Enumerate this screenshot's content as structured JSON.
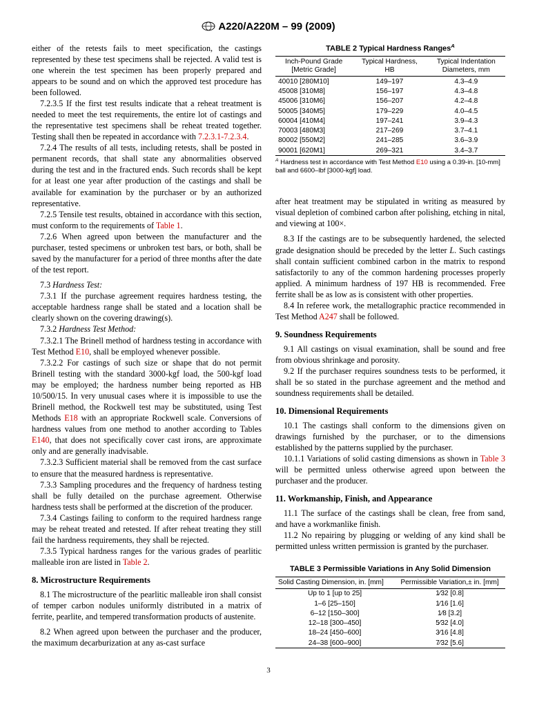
{
  "header": {
    "standard": "A220/A220M – 99 (2009)"
  },
  "col1": {
    "p1": "either of the retests fails to meet specification, the castings represented by these test specimens shall be rejected. A valid test is one wherein the test specimen has been properly prepared and appears to be sound and on which the approved test procedure has been followed.",
    "p2a": "7.2.3.5 If the first test results indicate that a reheat treatment is needed to meet the test requirements, the entire lot of castings and the representative test specimens shall be reheat treated together. Testing shall then be repeated in accordance with ",
    "p2ref": "7.2.3.1-7.2.3.4",
    "p2b": ".",
    "p3": "7.2.4 The results of all tests, including retests, shall be posted in permanent records, that shall state any abnormalities observed during the test and in the fractured ends. Such records shall be kept for at least one year after production of the castings and shall be available for examination by the purchaser or by an authorized representative.",
    "p4a": "7.2.5 Tensile test results, obtained in accordance with this section, must conform to the requirements of ",
    "p4ref": "Table 1",
    "p4b": ".",
    "p5": "7.2.6 When agreed upon between the manufacturer and the purchaser, tested specimens or unbroken test bars, or both, shall be saved by the manufacturer for a period of three months after the date of the test report.",
    "p6head": "7.3 ",
    "p6headit": "Hardness Test:",
    "p7": "7.3.1 If the purchase agreement requires hardness testing, the acceptable hardness range shall be stated and a location shall be clearly shown on the covering drawing(s).",
    "p8head": "7.3.2 ",
    "p8headit": "Hardness Test Method:",
    "p9a": "7.3.2.1 The Brinell method of hardness testing in accordance with Test Method ",
    "p9ref": "E10",
    "p9b": ", shall be employed whenever possible.",
    "p10a": "7.3.2.2 For castings of such size or shape that do not permit Brinell testing with the standard 3000-kgf load, the 500-kgf load may be employed; the hardness number being reported as HB 10/500/15. In very unusual cases where it is impossible to use the Brinell method, the Rockwell test may be substituted, using Test Methods ",
    "p10ref1": "E18",
    "p10b": " with an appropriate Rockwell scale. Conversions of hardness values from one method to another according to Tables ",
    "p10ref2": "E140",
    "p10c": ", that does not specifically cover cast irons, are approximate only and are generally inadvisable.",
    "p11": "7.3.2.3 Sufficient material shall be removed from the cast surface to ensure that the measured hardness is representative.",
    "p12": "7.3.3 Sampling procedures and the frequency of hardness testing shall be fully detailed on the purchase agreement. Otherwise hardness tests shall be performed at the discretion of the producer.",
    "p13": "7.3.4 Castings failing to conform to the required hardness range may be reheat treated and retested. If after reheat treating they still fail the hardness requirements, they shall be rejected.",
    "p14a": "7.3.5 Typical hardness ranges for the various grades of pearlitic malleable iron are listed in ",
    "p14ref": "Table 2",
    "p14b": ".",
    "sec8": "8.  Microstructure Requirements",
    "p15": "8.1 The microstructure of the pearlitic malleable iron shall consist of temper carbon nodules uniformly distributed in a matrix of ferrite, pearlite, and tempered transformation products of austenite.",
    "p16": "8.2 When agreed upon between the purchaser and the producer, the maximum decarburization at any as-cast surface"
  },
  "table2": {
    "title": "TABLE 2 Typical Hardness Ranges",
    "supA": "A",
    "h1a": "Inch-Pound Grade",
    "h1b": "[Metric Grade]",
    "h2a": "Typical Hardness,",
    "h2b": "HB",
    "h3a": "Typical Indentation",
    "h3b": "Diameters, mm",
    "rows": [
      [
        "40010 [280M10]",
        "149–197",
        "4.3–4.9"
      ],
      [
        "45008 [310M8]",
        "156–197",
        "4.3–4.8"
      ],
      [
        "45006 [310M6]",
        "156–207",
        "4.2–4.8"
      ],
      [
        "50005 [340M5]",
        "179–229",
        "4.0–4.5"
      ],
      [
        "60004 [410M4]",
        "197–241",
        "3.9–4.3"
      ],
      [
        "70003 [480M3]",
        "217–269",
        "3.7–4.1"
      ],
      [
        "80002 [550M2]",
        "241–285",
        "3.6–3.9"
      ],
      [
        "90001 [620M1]",
        "269–321",
        "3.4–3.7"
      ]
    ],
    "footA1": " Hardness test in accordance with Test Method ",
    "footRef": "E10",
    "footA2": " using a 0.39-in. [10-mm] ball and 6600–lbf [3000-kgf] load."
  },
  "col2": {
    "p1": "after heat treatment may be stipulated in writing as measured by visual depletion of combined carbon after polishing, etching in nital, and viewing at 100×.",
    "p2a": "8.3 If the castings are to be subsequently hardened, the selected grade designation should be preceded by the letter ",
    "p2it": "L",
    "p2b": ". Such castings shall contain sufficient combined carbon in the matrix to respond satisfactorily to any of the common hardening processes properly applied. A minimum hardness of 197 HB is recommended. Free ferrite shall be as low as is consistent with other properties.",
    "p3a": "8.4 In referee work, the metallographic practice recommended in Test Method ",
    "p3ref": "A247",
    "p3b": " shall be followed.",
    "sec9": "9.  Soundness Requirements",
    "p4": "9.1 All castings on visual examination, shall be sound and free from obvious shrinkage and porosity.",
    "p5": "9.2 If the purchaser requires soundness tests to be performed, it shall be so stated in the purchase agreement and the method and soundness requirements shall be detailed.",
    "sec10": "10.  Dimensional Requirements",
    "p6": "10.1 The castings shall conform to the dimensions given on drawings furnished by the purchaser, or to the dimensions established by the patterns supplied by the purchaser.",
    "p7a": "10.1.1 Variations of solid casting dimensions as shown in ",
    "p7ref": "Table 3",
    "p7b": " will be permitted unless otherwise agreed upon between the purchaser and the producer.",
    "sec11": "11.  Workmanship, Finish, and Appearance",
    "p8": "11.1 The surface of the castings shall be clean, free from sand, and have a workmanlike finish.",
    "p9": "11.2 No repairing by plugging or welding of any kind shall be permitted unless written permission is granted by the purchaser."
  },
  "table3": {
    "title": "TABLE 3 Permissible Variations in Any Solid Dimension",
    "h1": "Solid Casting Dimension, in. [mm]",
    "h2": "Permissible Variation,± in. [mm]",
    "rows": [
      [
        "Up to 1 [up to 25]",
        "1⁄32 [0.8]"
      ],
      [
        "1–6 [25–150]",
        "1⁄16 [1.6]"
      ],
      [
        "6–12 [150–300]",
        "1⁄8 [3.2]"
      ],
      [
        "12–18 [300–450]",
        "5⁄32 [4.0]"
      ],
      [
        "18–24 [450–600]",
        "3⁄16 [4.8]"
      ],
      [
        "24–38 [600–900]",
        "7⁄32 [5.6]"
      ]
    ]
  },
  "pagenum": "3"
}
